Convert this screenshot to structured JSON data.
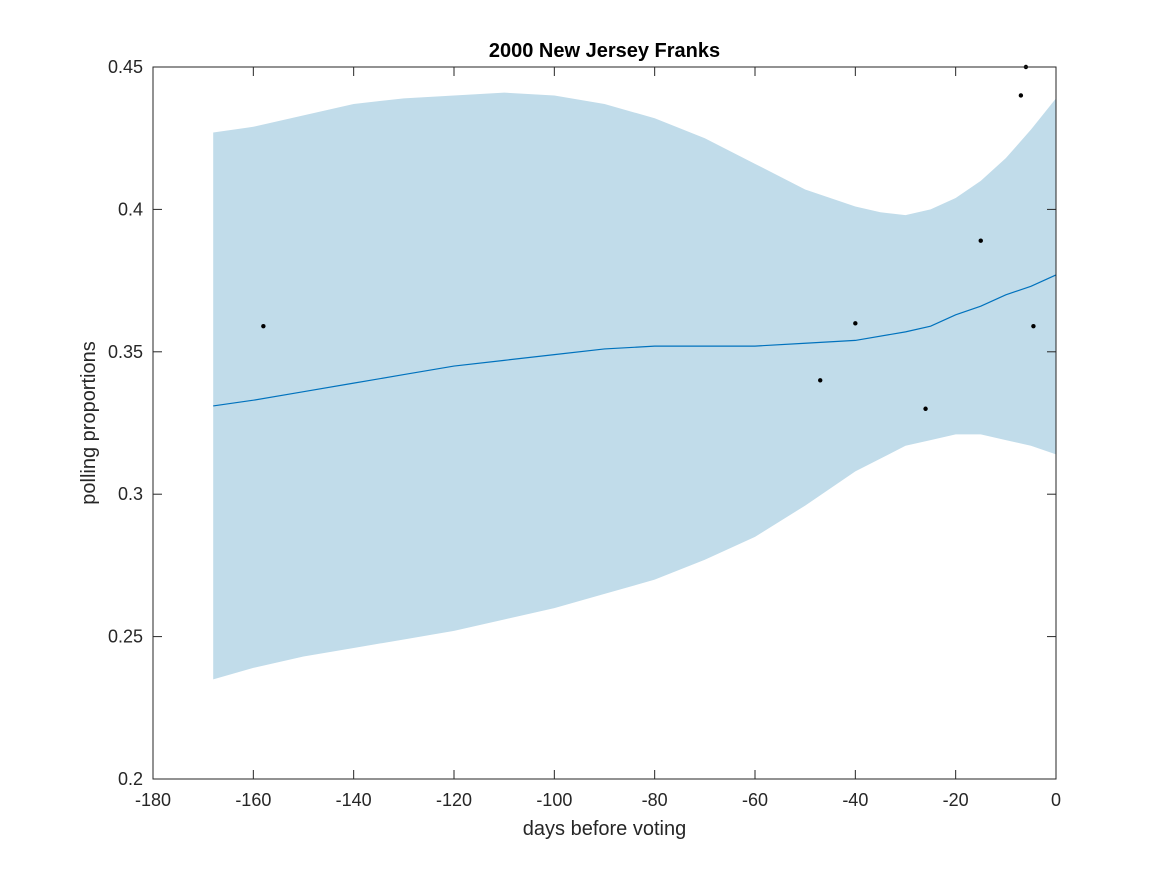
{
  "chart_data": {
    "type": "line",
    "title": "2000 New Jersey Franks",
    "xlabel": "days before voting",
    "ylabel": "polling proportions",
    "xlim": [
      -180,
      0
    ],
    "ylim": [
      0.2,
      0.45
    ],
    "xticks": [
      -180,
      -160,
      -140,
      -120,
      -100,
      -80,
      -60,
      -40,
      -20,
      0
    ],
    "yticks": [
      0.2,
      0.25,
      0.3,
      0.35,
      0.4,
      0.45
    ],
    "xtick_labels": [
      "-180",
      "-160",
      "-140",
      "-120",
      "-100",
      "-80",
      "-60",
      "-40",
      "-20",
      "0"
    ],
    "ytick_labels": [
      "0.2",
      "0.25",
      "0.3",
      "0.35",
      "0.4",
      "0.45"
    ],
    "grid": false,
    "colors": {
      "band": "#c1dcea",
      "mean_line": "#0072bd",
      "points": "#000000",
      "axes": "#262626"
    },
    "mean": {
      "x": [
        -168,
        -160,
        -150,
        -140,
        -130,
        -120,
        -110,
        -100,
        -90,
        -80,
        -70,
        -60,
        -50,
        -40,
        -30,
        -25,
        -20,
        -15,
        -10,
        -5,
        0
      ],
      "y": [
        0.331,
        0.333,
        0.336,
        0.339,
        0.342,
        0.345,
        0.347,
        0.349,
        0.351,
        0.352,
        0.352,
        0.352,
        0.353,
        0.354,
        0.357,
        0.359,
        0.363,
        0.366,
        0.37,
        0.373,
        0.377
      ]
    },
    "upper": {
      "x": [
        -168,
        -160,
        -150,
        -140,
        -130,
        -120,
        -110,
        -100,
        -90,
        -80,
        -70,
        -60,
        -50,
        -40,
        -35,
        -30,
        -25,
        -20,
        -15,
        -10,
        -5,
        0
      ],
      "y": [
        0.427,
        0.429,
        0.433,
        0.437,
        0.439,
        0.44,
        0.441,
        0.44,
        0.437,
        0.432,
        0.425,
        0.416,
        0.407,
        0.401,
        0.399,
        0.398,
        0.4,
        0.404,
        0.41,
        0.418,
        0.428,
        0.439
      ]
    },
    "lower": {
      "x": [
        -168,
        -160,
        -150,
        -140,
        -130,
        -120,
        -110,
        -100,
        -90,
        -80,
        -70,
        -60,
        -50,
        -40,
        -30,
        -25,
        -20,
        -15,
        -10,
        -5,
        0
      ],
      "y": [
        0.235,
        0.239,
        0.243,
        0.246,
        0.249,
        0.252,
        0.256,
        0.26,
        0.265,
        0.27,
        0.277,
        0.285,
        0.296,
        0.308,
        0.317,
        0.319,
        0.321,
        0.321,
        0.319,
        0.317,
        0.314
      ]
    },
    "points": {
      "x": [
        -158,
        -47,
        -40,
        -26,
        -15,
        -7,
        -6,
        -4.5
      ],
      "y": [
        0.359,
        0.34,
        0.36,
        0.33,
        0.389,
        0.44,
        0.45,
        0.359
      ]
    }
  }
}
